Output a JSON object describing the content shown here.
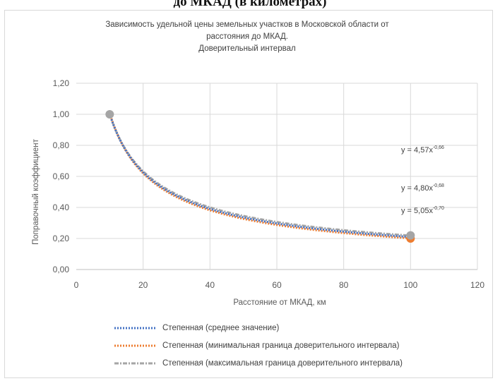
{
  "page_header": "до МКАД (в километрах)",
  "chart_data": {
    "type": "line",
    "title_lines": [
      "Зависимость удельной цены земельных участков в Московской области от",
      "расстояния до МКАД.",
      "Доверительный интервал"
    ],
    "xlabel": "Расстояние от МКАД, км",
    "ylabel": "Поправочный коэффициент",
    "xlim": [
      0,
      120
    ],
    "ylim": [
      0,
      1.2
    ],
    "x_ticks": [
      "0",
      "20",
      "40",
      "60",
      "80",
      "100",
      "120"
    ],
    "y_ticks": [
      "0,00",
      "0,20",
      "0,40",
      "0,60",
      "0,80",
      "1,00",
      "1,20"
    ],
    "grid": true,
    "legend_position": "bottom",
    "series": [
      {
        "name": "Степенная (среднее значение)",
        "color": "#4472c4",
        "a": 4.8,
        "b": -0.68,
        "equation": "y = 4,80x",
        "exponent": "-0,68"
      },
      {
        "name": "Степенная (минимальная граница доверительного интервала)",
        "color": "#ed7d31",
        "a": 5.05,
        "b": -0.7,
        "equation": "y = 5,05x",
        "exponent": "-0,70"
      },
      {
        "name": "Степенная (максимальная граница доверительного интервала)",
        "color": "#a5a5a5",
        "a": 4.57,
        "b": -0.66,
        "equation": "y = 4,57x",
        "exponent": "-0,66"
      }
    ],
    "points": [
      {
        "x": 10,
        "y": 1.0,
        "color": "#a5a5a5"
      },
      {
        "x": 100,
        "y": 0.2,
        "color": "#ed7d31"
      },
      {
        "x": 100,
        "y": 0.22,
        "color": "#a5a5a5"
      }
    ],
    "equation_order": [
      2,
      0,
      1
    ]
  }
}
